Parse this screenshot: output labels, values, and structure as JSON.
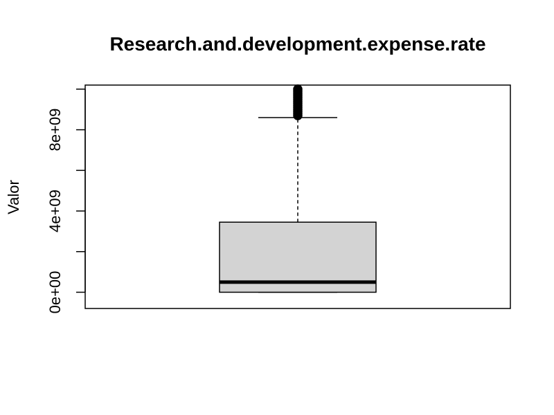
{
  "chart_data": {
    "type": "boxplot",
    "title": "Research.and.development.expense.rate",
    "xlabel": "",
    "ylabel": "Valor",
    "ylim": [
      -800000000.0,
      10200000000.0
    ],
    "y_ticks": [
      {
        "value": 0,
        "label": "0e+00"
      },
      {
        "value": 2000000000.0,
        "label": ""
      },
      {
        "value": 4000000000.0,
        "label": "4e+09"
      },
      {
        "value": 6000000000.0,
        "label": ""
      },
      {
        "value": 8000000000.0,
        "label": "8e+09"
      },
      {
        "value": 10000000000.0,
        "label": ""
      }
    ],
    "box": {
      "min": 0,
      "q1": 0,
      "median": 500000000.0,
      "q3": 3450000000.0,
      "whisker_high": 8600000000.0
    },
    "outliers": [
      8700000000.0,
      8800000000.0,
      8900000000.0,
      9000000000.0,
      9100000000.0,
      9200000000.0,
      9300000000.0,
      9400000000.0,
      9500000000.0,
      9600000000.0,
      9700000000.0,
      9800000000.0,
      9900000000.0,
      10000000000.0
    ],
    "box_fill": "#d3d3d3",
    "grid": false,
    "legend": "none"
  }
}
